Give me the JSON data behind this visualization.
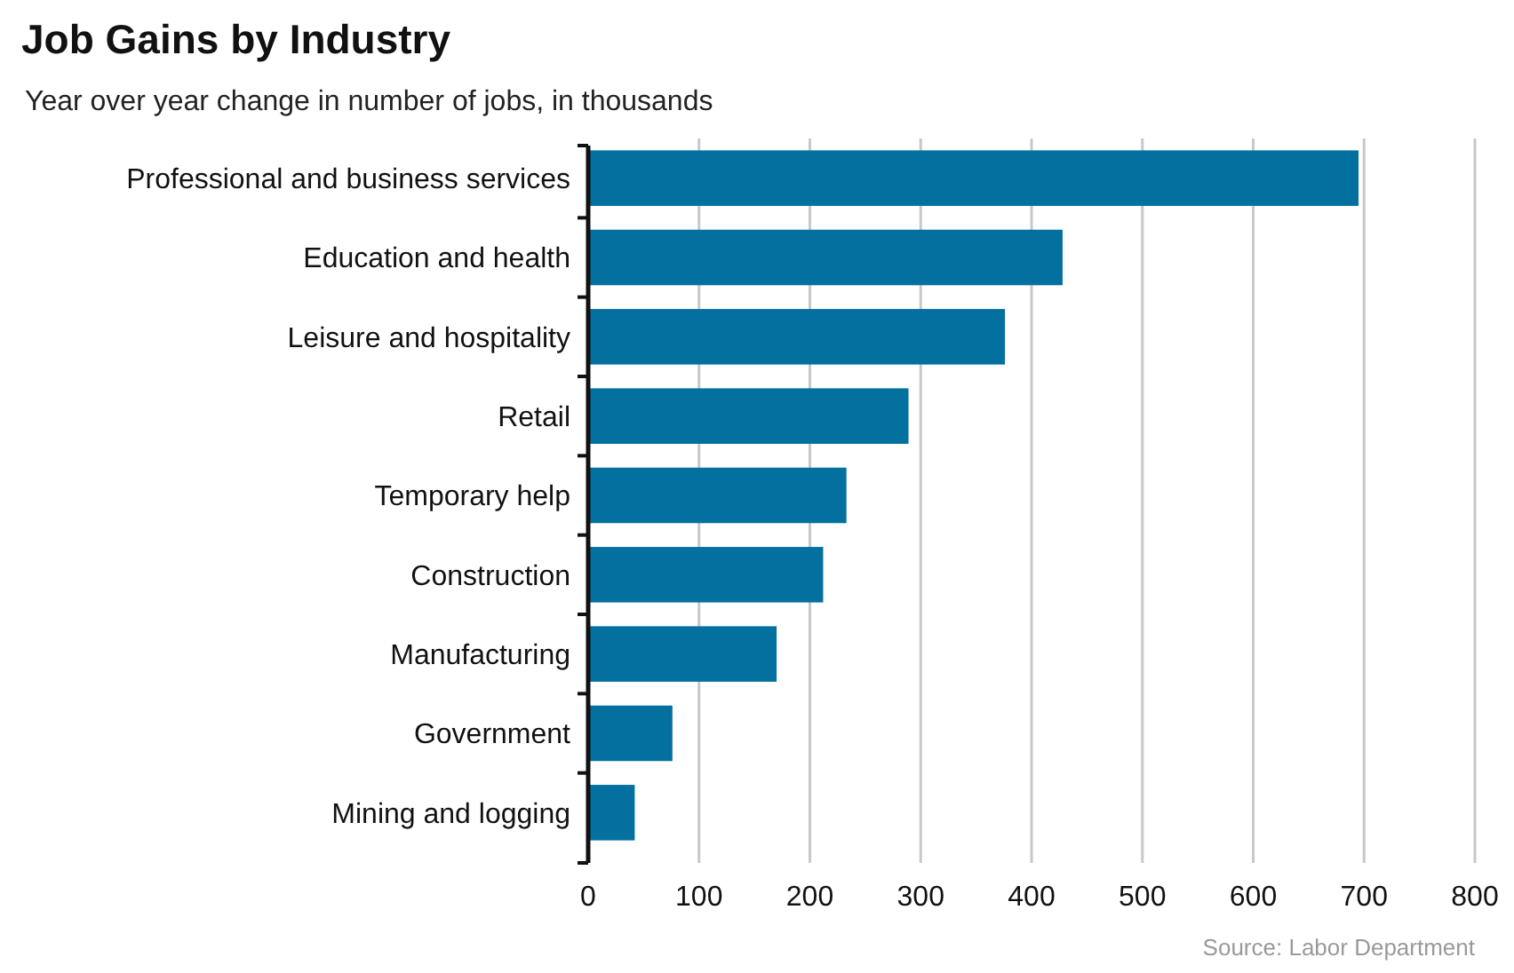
{
  "chart_data": {
    "type": "bar",
    "orientation": "horizontal",
    "title": "Job Gains by Industry",
    "subtitle": "Year over year change in number of jobs, in thousands",
    "categories": [
      "Professional and business services",
      "Education and health",
      "Leisure and hospitality",
      "Retail",
      "Temporary help",
      "Construction",
      "Manufacturing",
      "Government",
      "Mining and logging"
    ],
    "values": [
      695,
      428,
      376,
      289,
      233,
      212,
      170,
      76,
      42
    ],
    "color": "#04709f",
    "xlim": [
      0,
      800
    ],
    "xticks": [
      0,
      100,
      200,
      300,
      400,
      500,
      600,
      700,
      800
    ],
    "grid": "x",
    "annotations": [
      "Source: Labor Department"
    ]
  }
}
